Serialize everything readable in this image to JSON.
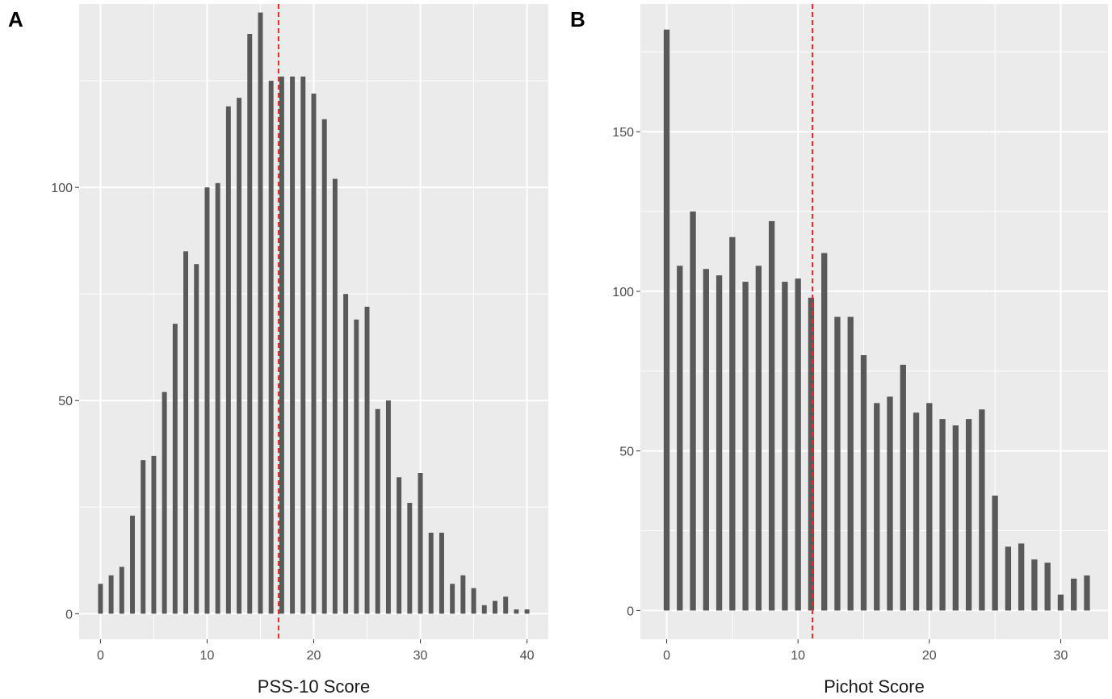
{
  "chart_data": [
    {
      "panel_label": "A",
      "type": "bar",
      "xlabel": "PSS-10 Score",
      "ylabel": "",
      "xlim": [
        -2,
        42
      ],
      "ylim": [
        -6,
        143
      ],
      "x_ticks": [
        0,
        10,
        20,
        30,
        40
      ],
      "y_ticks": [
        0,
        50,
        100
      ],
      "x": [
        0,
        1,
        2,
        3,
        4,
        5,
        6,
        7,
        8,
        9,
        10,
        11,
        12,
        13,
        14,
        15,
        16,
        17,
        18,
        19,
        20,
        21,
        22,
        23,
        24,
        25,
        26,
        27,
        28,
        29,
        30,
        31,
        32,
        33,
        34,
        35,
        36,
        37,
        38,
        39,
        40
      ],
      "values": [
        7,
        9,
        11,
        23,
        36,
        37,
        52,
        68,
        85,
        82,
        100,
        101,
        119,
        121,
        136,
        141,
        125,
        126,
        126,
        126,
        122,
        116,
        102,
        75,
        69,
        72,
        48,
        50,
        32,
        26,
        33,
        19,
        19,
        7,
        9,
        6,
        2,
        3,
        4,
        1,
        1
      ],
      "reference_line": {
        "x": 16.7,
        "style": "dashed",
        "color": "#e8282b"
      },
      "bar_color": "#595959",
      "panel_bg": "#ebebeb",
      "grid": true
    },
    {
      "panel_label": "B",
      "type": "bar",
      "xlabel": "Pichot Score",
      "ylabel": "",
      "xlim": [
        -2,
        33.6
      ],
      "ylim": [
        -9,
        190
      ],
      "x_ticks": [
        0,
        10,
        20,
        30
      ],
      "y_ticks": [
        0,
        50,
        100,
        150
      ],
      "x": [
        0,
        1,
        2,
        3,
        4,
        5,
        6,
        7,
        8,
        9,
        10,
        11,
        12,
        13,
        14,
        15,
        16,
        17,
        18,
        19,
        20,
        21,
        22,
        23,
        24,
        25,
        26,
        27,
        28,
        29,
        30,
        31,
        32
      ],
      "values": [
        182,
        108,
        125,
        107,
        105,
        117,
        103,
        108,
        122,
        103,
        104,
        98,
        112,
        92,
        92,
        80,
        65,
        67,
        77,
        62,
        65,
        60,
        58,
        60,
        63,
        36,
        20,
        21,
        16,
        15,
        5,
        10,
        11
      ],
      "reference_line": {
        "x": 11.1,
        "style": "dashed",
        "color": "#e8282b"
      },
      "bar_color": "#595959",
      "panel_bg": "#ebebeb",
      "grid": true
    }
  ]
}
